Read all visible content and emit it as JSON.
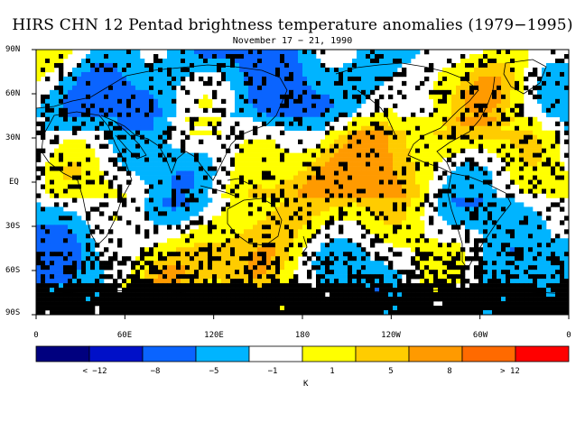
{
  "title": "HIRS CHN 12 Pentad brightness temperature anomalies (1979−1995)",
  "subtitle": "November 17 − 21, 1990",
  "y_ticks": [
    "90N",
    "60N",
    "30N",
    "EQ",
    "30S",
    "60S",
    "90S"
  ],
  "x_ticks": [
    "0",
    "60E",
    "120E",
    "180",
    "120W",
    "60W",
    "0"
  ],
  "colorbar": {
    "colors": [
      "#00007f",
      "#0010c8",
      "#0a64ff",
      "#00b4ff",
      "#ffffff",
      "#ffff00",
      "#ffcc00",
      "#ff9a00",
      "#ff6a00",
      "#ff0000"
    ],
    "labels": [
      "< −12",
      "−8",
      "−5",
      "−1",
      "1",
      "5",
      "8",
      "> 12"
    ],
    "unit": "K"
  },
  "map_colors": {
    "missing": "#000000",
    "coast": "#000000"
  }
}
